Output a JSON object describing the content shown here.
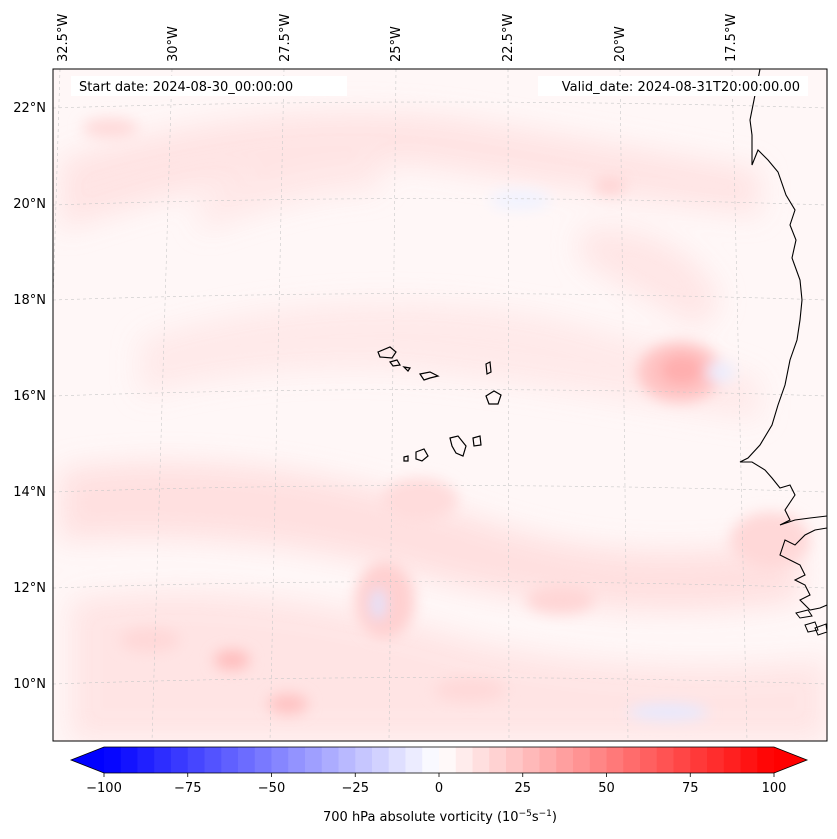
{
  "map": {
    "header_left": "Start date: 2024-08-30_00:00:00",
    "header_right": "Valid_date: 2024-08-31T20:00:00.00",
    "lon_labels": [
      "32.5°W",
      "30°W",
      "27.5°W",
      "25°W",
      "22.5°W",
      "20°W",
      "17.5°W"
    ],
    "lat_labels": [
      "22°N",
      "20°N",
      "18°N",
      "16°N",
      "14°N",
      "12°N",
      "10°N"
    ],
    "colorbar_label": "700 hPa absolute vorticity (10",
    "colorbar_label_exp1": "−5",
    "colorbar_label_mid": "s",
    "colorbar_label_exp2": "−1",
    "colorbar_label_close": ")",
    "colorbar_ticks": [
      "−100",
      "−75",
      "−50",
      "−25",
      "0",
      "25",
      "50",
      "75",
      "100"
    ],
    "colorbar_range": [
      -100,
      100
    ],
    "colormap": "bwr",
    "colors": {
      "negative": "#0000ff",
      "zero": "#ffffff",
      "positive": "#ff0000",
      "coastline": "#000000",
      "gridline": "#bbbbbb"
    }
  }
}
